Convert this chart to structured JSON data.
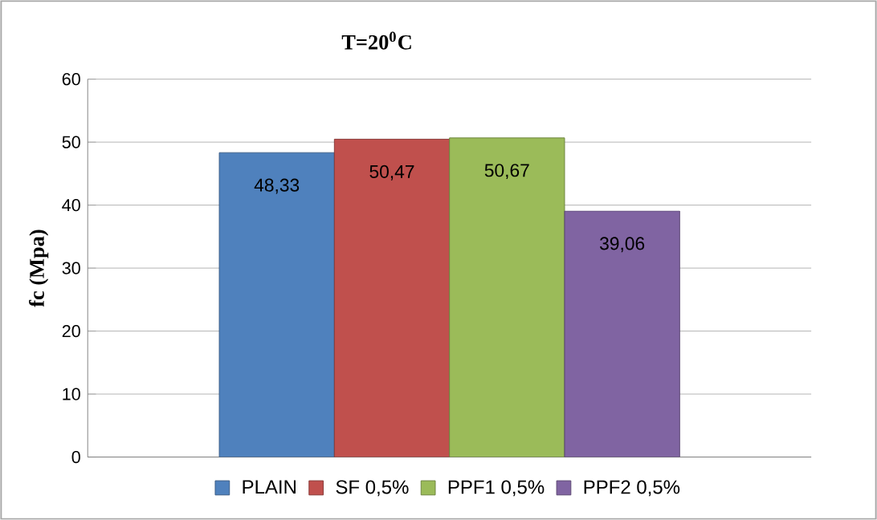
{
  "chart_data": {
    "type": "bar",
    "title": "T=20$^{0}$C",
    "ylabel": "fc (Mpa)",
    "categories": [
      null
    ],
    "series": [
      {
        "name": "PLAIN",
        "color": "#4f81bd",
        "values": [
          48.33
        ],
        "value_labels": [
          "48,33"
        ]
      },
      {
        "name": "SF 0,5%",
        "color": "#c0504d",
        "values": [
          50.47
        ],
        "value_labels": [
          "50,47"
        ]
      },
      {
        "name": "PPF1 0,5%",
        "color": "#9bbb59",
        "values": [
          50.67
        ],
        "value_labels": [
          "50,67"
        ]
      },
      {
        "name": "PPF2 0,5%",
        "color": "#8064a2",
        "values": [
          39.06
        ],
        "value_labels": [
          "39,06"
        ]
      }
    ],
    "ylim": [
      0,
      60
    ],
    "yticks": [
      0,
      10,
      20,
      30,
      40,
      50,
      60
    ],
    "grid": "y",
    "legend": "bottom"
  }
}
